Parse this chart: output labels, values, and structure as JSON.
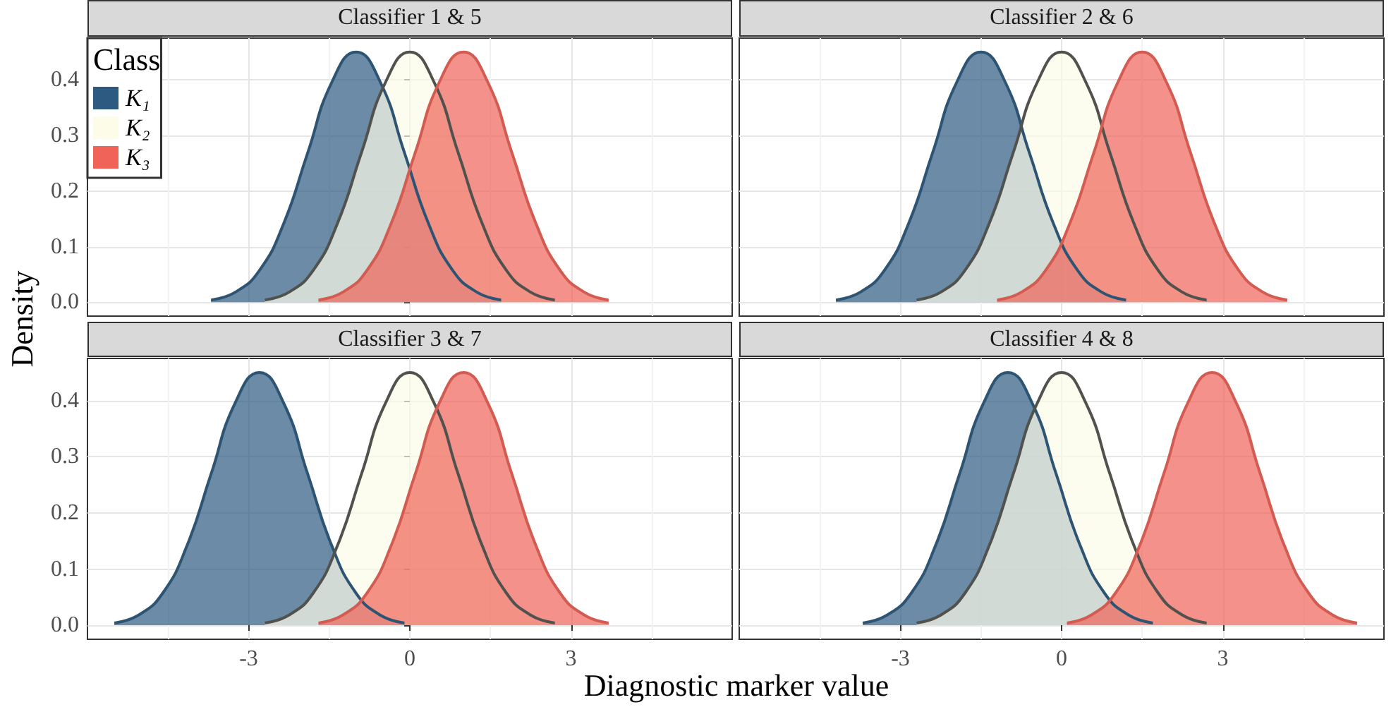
{
  "chart_data": [
    {
      "type": "area",
      "title": "Classifier 1 & 5",
      "ylabel": "Density",
      "xlim": [
        -6,
        6
      ],
      "xticks": [
        -3,
        0,
        3
      ],
      "ylim": [
        -0.025,
        0.475
      ],
      "yticks": [
        {
          "value": 0,
          "label": "0.0"
        },
        {
          "value": 0.1,
          "label": "0.1"
        },
        {
          "value": 0.2,
          "label": "0.2"
        },
        {
          "value": 0.3,
          "label": "0.3"
        },
        {
          "value": 0.4,
          "label": "0.4"
        }
      ],
      "grid": true,
      "tick_labels": "y",
      "legend": "top left",
      "legend_title": "Class",
      "series": [
        {
          "name": "K₁",
          "color": "#2d5a80",
          "x": [
            -3.7,
            -3.25,
            -2.8,
            -2.35,
            -1.9,
            -1.45,
            -1,
            -0.55,
            -0.1,
            0.35,
            0.8,
            1.25,
            1.7
          ],
          "values": [
            0.004,
            0.018,
            0.057,
            0.141,
            0.269,
            0.396,
            0.45,
            0.396,
            0.269,
            0.141,
            0.057,
            0.018,
            0.004
          ]
        },
        {
          "name": "K₂",
          "color": "#fcfce8",
          "x": [
            -2.7,
            -2.25,
            -1.8,
            -1.35,
            -0.9,
            -0.45,
            0,
            0.45,
            0.9,
            1.35,
            1.8,
            2.25,
            2.7
          ],
          "values": [
            0.004,
            0.018,
            0.057,
            0.141,
            0.269,
            0.396,
            0.45,
            0.396,
            0.269,
            0.141,
            0.057,
            0.018,
            0.004
          ]
        },
        {
          "name": "K₃",
          "color": "#ef6358",
          "x": [
            -1.7,
            -1.25,
            -0.8,
            -0.35,
            0.1,
            0.55,
            1,
            1.45,
            1.9,
            2.35,
            2.8,
            3.25,
            3.7
          ],
          "values": [
            0.004,
            0.018,
            0.057,
            0.141,
            0.269,
            0.396,
            0.45,
            0.396,
            0.269,
            0.141,
            0.057,
            0.018,
            0.004
          ]
        }
      ]
    },
    {
      "type": "area",
      "title": "Classifier 2 & 6",
      "xlim": [
        -6,
        6
      ],
      "xticks": [
        -3,
        0,
        3
      ],
      "ylim": [
        -0.025,
        0.475
      ],
      "yticks": [
        0,
        0.1,
        0.2,
        0.3,
        0.4
      ],
      "grid": true,
      "tick_labels": false,
      "series": [
        {
          "color": "#2d5a80",
          "x": [
            -4.2,
            -3.75,
            -3.3,
            -2.85,
            -2.4,
            -1.95,
            -1.5,
            -1.05,
            -0.6,
            -0.15,
            0.3,
            0.75,
            1.2
          ],
          "values": [
            0.004,
            0.018,
            0.057,
            0.141,
            0.269,
            0.396,
            0.45,
            0.396,
            0.269,
            0.141,
            0.057,
            0.018,
            0.004
          ]
        },
        {
          "color": "#fcfce8",
          "x": [
            -2.7,
            -2.25,
            -1.8,
            -1.35,
            -0.9,
            -0.45,
            0,
            0.45,
            0.9,
            1.35,
            1.8,
            2.25,
            2.7
          ],
          "values": [
            0.004,
            0.018,
            0.057,
            0.141,
            0.269,
            0.396,
            0.45,
            0.396,
            0.269,
            0.141,
            0.057,
            0.018,
            0.004
          ]
        },
        {
          "color": "#ef6358",
          "x": [
            -1.2,
            -0.75,
            -0.3,
            0.15,
            0.6,
            1.05,
            1.5,
            1.95,
            2.4,
            2.85,
            3.3,
            3.75,
            4.2
          ],
          "values": [
            0.004,
            0.018,
            0.057,
            0.141,
            0.269,
            0.396,
            0.45,
            0.396,
            0.269,
            0.141,
            0.057,
            0.018,
            0.004
          ]
        }
      ]
    },
    {
      "type": "area",
      "title": "Classifier 3 & 7",
      "xlabel": "Diagnostic marker value",
      "xlim": [
        -6,
        6
      ],
      "xticks": [
        -3,
        0,
        3
      ],
      "ylim": [
        -0.025,
        0.475
      ],
      "yticks": [
        {
          "value": 0,
          "label": "0.0"
        },
        {
          "value": 0.1,
          "label": "0.1"
        },
        {
          "value": 0.2,
          "label": "0.2"
        },
        {
          "value": 0.3,
          "label": "0.3"
        },
        {
          "value": 0.4,
          "label": "0.4"
        }
      ],
      "grid": true,
      "series": [
        {
          "color": "#2d5a80",
          "x": [
            -5.5,
            -5.05,
            -4.6,
            -4.15,
            -3.7,
            -3.25,
            -2.8,
            -2.35,
            -1.9,
            -1.45,
            -1,
            -0.55,
            -0.1
          ],
          "values": [
            0.004,
            0.018,
            0.057,
            0.141,
            0.269,
            0.396,
            0.45,
            0.396,
            0.269,
            0.141,
            0.057,
            0.018,
            0.004
          ]
        },
        {
          "color": "#fcfce8",
          "x": [
            -2.7,
            -2.25,
            -1.8,
            -1.35,
            -0.9,
            -0.45,
            0,
            0.45,
            0.9,
            1.35,
            1.8,
            2.25,
            2.7
          ],
          "values": [
            0.004,
            0.018,
            0.057,
            0.141,
            0.269,
            0.396,
            0.45,
            0.396,
            0.269,
            0.141,
            0.057,
            0.018,
            0.004
          ]
        },
        {
          "color": "#ef6358",
          "x": [
            -1.7,
            -1.25,
            -0.8,
            -0.35,
            0.1,
            0.55,
            1,
            1.45,
            1.9,
            2.35,
            2.8,
            3.25,
            3.7
          ],
          "values": [
            0.004,
            0.018,
            0.057,
            0.141,
            0.269,
            0.396,
            0.45,
            0.396,
            0.269,
            0.141,
            0.057,
            0.018,
            0.004
          ]
        }
      ]
    },
    {
      "type": "area",
      "title": "Classifier 4 & 8",
      "xlim": [
        -6,
        6
      ],
      "xticks": [
        -3,
        0,
        3
      ],
      "ylim": [
        -0.025,
        0.475
      ],
      "yticks": [
        0,
        0.1,
        0.2,
        0.3,
        0.4
      ],
      "grid": true,
      "tick_labels": "x",
      "series": [
        {
          "color": "#2d5a80",
          "x": [
            -3.7,
            -3.25,
            -2.8,
            -2.35,
            -1.9,
            -1.45,
            -1,
            -0.55,
            -0.1,
            0.35,
            0.8,
            1.25,
            1.7
          ],
          "values": [
            0.004,
            0.018,
            0.057,
            0.141,
            0.269,
            0.396,
            0.45,
            0.396,
            0.269,
            0.141,
            0.057,
            0.018,
            0.004
          ]
        },
        {
          "color": "#fcfce8",
          "x": [
            -2.7,
            -2.25,
            -1.8,
            -1.35,
            -0.9,
            -0.45,
            0,
            0.45,
            0.9,
            1.35,
            1.8,
            2.25,
            2.7
          ],
          "values": [
            0.004,
            0.018,
            0.057,
            0.141,
            0.269,
            0.396,
            0.45,
            0.396,
            0.269,
            0.141,
            0.057,
            0.018,
            0.004
          ]
        },
        {
          "color": "#ef6358",
          "x": [
            0.1,
            0.55,
            1,
            1.45,
            1.9,
            2.35,
            2.8,
            3.25,
            3.7,
            4.15,
            4.6,
            5.05,
            5.5
          ],
          "values": [
            0.004,
            0.018,
            0.057,
            0.141,
            0.269,
            0.396,
            0.45,
            0.396,
            0.269,
            0.141,
            0.057,
            0.018,
            0.004
          ]
        }
      ]
    }
  ]
}
